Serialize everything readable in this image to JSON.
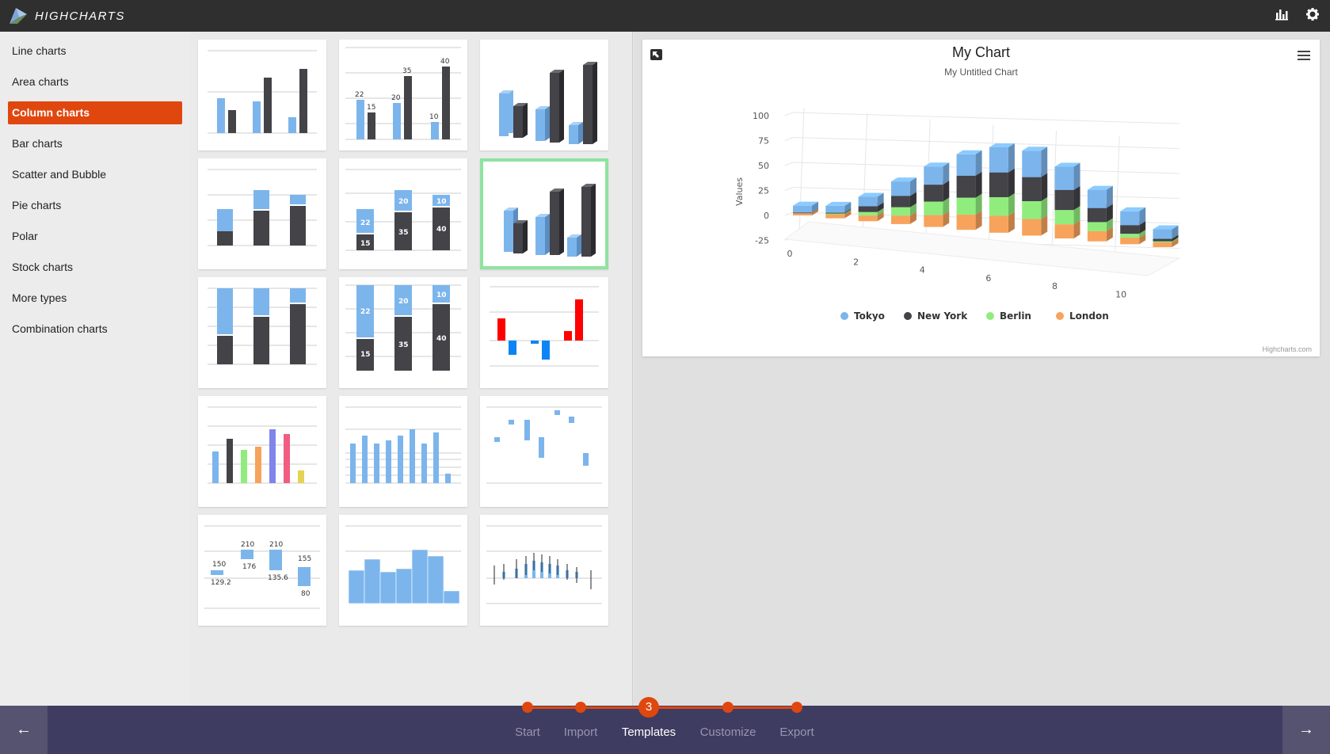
{
  "app": {
    "name": "HIGHCHARTS"
  },
  "topbar": {
    "icons": [
      "bar-chart-icon",
      "gear-icon"
    ]
  },
  "sidebar": {
    "items": [
      {
        "label": "Line charts"
      },
      {
        "label": "Area charts"
      },
      {
        "label": "Column charts",
        "active": true
      },
      {
        "label": "Bar charts"
      },
      {
        "label": "Scatter and Bubble"
      },
      {
        "label": "Pie charts"
      },
      {
        "label": "Polar"
      },
      {
        "label": "Stock charts"
      },
      {
        "label": "More types"
      },
      {
        "label": "Combination charts"
      }
    ]
  },
  "gallery": {
    "templates": [
      {
        "name": "basic-column"
      },
      {
        "name": "column-with-labels",
        "labels": [
          "22",
          "15",
          "35",
          "20",
          "40",
          "10"
        ]
      },
      {
        "name": "column-3d"
      },
      {
        "name": "stacked-column"
      },
      {
        "name": "stacked-column-with-labels",
        "labels": [
          "22",
          "15",
          "20",
          "35",
          "10",
          "40"
        ]
      },
      {
        "name": "stacked-column-3d",
        "selected": true
      },
      {
        "name": "stacked-percent-column"
      },
      {
        "name": "stacked-percent-column-with-labels",
        "labels": [
          "22",
          "15",
          "20",
          "35",
          "10",
          "40"
        ]
      },
      {
        "name": "negative-color-column"
      },
      {
        "name": "multicolor-column"
      },
      {
        "name": "logarithmic-column"
      },
      {
        "name": "floating-column"
      },
      {
        "name": "column-range-with-labels",
        "labels": [
          "150",
          "129.2",
          "210",
          "176",
          "210",
          "135.6",
          "155",
          "80"
        ]
      },
      {
        "name": "histogram"
      },
      {
        "name": "error-bar-column"
      }
    ]
  },
  "preview": {
    "title": "My Chart",
    "subtitle": "My Untitled Chart",
    "credits": "Highcharts.com",
    "colors": {
      "Tokyo": "#7cb5ec",
      "New York": "#434348",
      "Berlin": "#90ed7d",
      "London": "#f7a35c"
    }
  },
  "chart_data": {
    "type": "bar",
    "stacked": true,
    "three_d": true,
    "title": "My Chart",
    "subtitle": "My Untitled Chart",
    "ylabel": "Values",
    "x": [
      0,
      1,
      2,
      3,
      4,
      5,
      6,
      7,
      8,
      9,
      10,
      11
    ],
    "x_tick_labels": [
      "0",
      "2",
      "4",
      "6",
      "8",
      "10"
    ],
    "y_tick_labels": [
      "100",
      "75",
      "50",
      "25",
      "0",
      "-25"
    ],
    "ylim": [
      -25,
      100
    ],
    "legend": "bottom",
    "series": [
      {
        "name": "Tokyo",
        "values": [
          7,
          6.9,
          9.5,
          14.5,
          18.2,
          21.5,
          25.2,
          26.5,
          23.3,
          18.3,
          13.9,
          9.6
        ]
      },
      {
        "name": "New York",
        "values": [
          -0.2,
          0.8,
          5.7,
          11.3,
          17,
          22,
          24.8,
          24.1,
          20.1,
          14.1,
          8.6,
          2.5
        ]
      },
      {
        "name": "Berlin",
        "values": [
          -0.9,
          0.6,
          3.5,
          8.4,
          13.5,
          17,
          18.6,
          17.9,
          14.3,
          9,
          3.9,
          1
        ]
      },
      {
        "name": "London",
        "values": [
          3.9,
          4.2,
          5.7,
          8.5,
          11.9,
          15.2,
          17,
          16.6,
          14.2,
          10.3,
          6.6,
          4.8
        ]
      }
    ]
  },
  "steps": [
    {
      "label": "Start"
    },
    {
      "label": "Import"
    },
    {
      "label": "Templates",
      "number": "3",
      "current": true
    },
    {
      "label": "Customize"
    },
    {
      "label": "Export"
    }
  ],
  "nav": {
    "back": "←",
    "next": "→"
  }
}
